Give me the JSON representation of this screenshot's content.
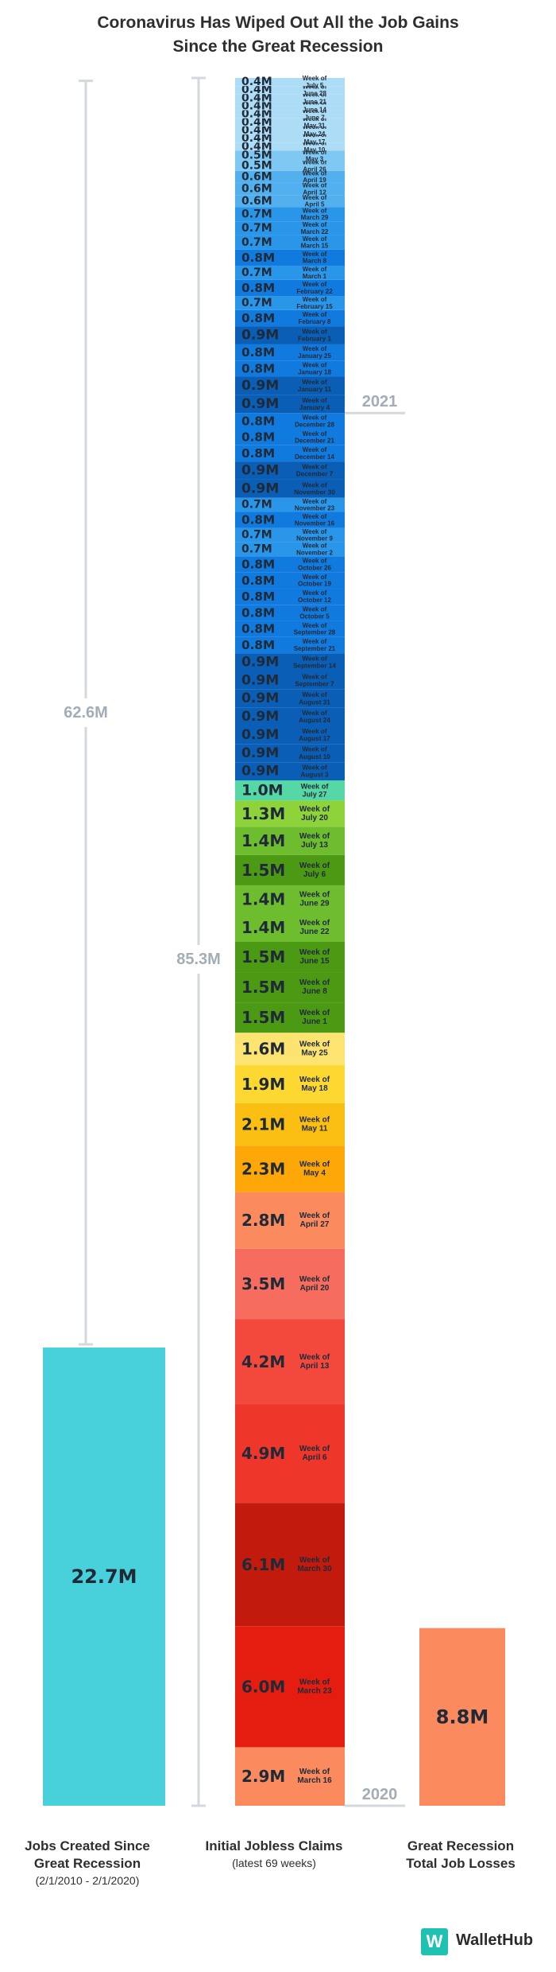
{
  "title_lines": [
    "Coronavirus Has Wiped Out All the Job Gains",
    "Since the Great Recession"
  ],
  "chart_data": {
    "type": "bar",
    "title": "Coronavirus Has Wiped Out All the Job Gains Since the Great Recession",
    "columns": [
      {
        "key": "jobs",
        "label_lines": [
          "Jobs Created Since",
          "Great Recession"
        ],
        "sublabel": "(2/1/2010 - 2/1/2020)",
        "value_label": "22.7M",
        "value": 22.7,
        "color": "#48d1da",
        "bracket_label": "62.6M",
        "bracket_value": 62.6
      },
      {
        "key": "claims",
        "label_lines": [
          "Initial Jobless Claims"
        ],
        "sublabel": "(latest 69 weeks)",
        "total_label": "85.3M",
        "total_value": 85.3
      },
      {
        "key": "recession",
        "label_lines": [
          "Great Recession",
          "Total Job Losses"
        ],
        "sublabel": "",
        "value_label": "8.8M",
        "value": 8.8,
        "color": "#fb8a5f"
      }
    ],
    "year_labels": [
      "2021",
      "2020"
    ],
    "weeks": [
      {
        "label": "0.4M",
        "date": "July 5",
        "value": 0.4,
        "color": "#addcf6"
      },
      {
        "label": "0.4M",
        "date": "June 28",
        "value": 0.4,
        "color": "#addcf6"
      },
      {
        "label": "0.4M",
        "date": "June 21",
        "value": 0.4,
        "color": "#addcf6"
      },
      {
        "label": "0.4M",
        "date": "June 14",
        "value": 0.4,
        "color": "#addcf6"
      },
      {
        "label": "0.4M",
        "date": "June 7",
        "value": 0.4,
        "color": "#addcf6"
      },
      {
        "label": "0.4M",
        "date": "May 31",
        "value": 0.4,
        "color": "#addcf6"
      },
      {
        "label": "0.4M",
        "date": "May 24",
        "value": 0.4,
        "color": "#addcf6"
      },
      {
        "label": "0.4M",
        "date": "May 17",
        "value": 0.4,
        "color": "#addcf6"
      },
      {
        "label": "0.4M",
        "date": "May 10",
        "value": 0.4,
        "color": "#addcf6"
      },
      {
        "label": "0.5M",
        "date": "May 3",
        "value": 0.5,
        "color": "#7fc8f3"
      },
      {
        "label": "0.5M",
        "date": "April 26",
        "value": 0.5,
        "color": "#7fc8f3"
      },
      {
        "label": "0.6M",
        "date": "April 19",
        "value": 0.6,
        "color": "#53b0ee"
      },
      {
        "label": "0.6M",
        "date": "April 12",
        "value": 0.6,
        "color": "#53b0ee"
      },
      {
        "label": "0.6M",
        "date": "April 5",
        "value": 0.6,
        "color": "#53b0ee"
      },
      {
        "label": "0.7M",
        "date": "March 29",
        "value": 0.7,
        "color": "#2a96ea"
      },
      {
        "label": "0.7M",
        "date": "March 22",
        "value": 0.7,
        "color": "#2a96ea"
      },
      {
        "label": "0.7M",
        "date": "March 15",
        "value": 0.7,
        "color": "#2a96ea"
      },
      {
        "label": "0.8M",
        "date": "March 8",
        "value": 0.8,
        "color": "#117ade"
      },
      {
        "label": "0.7M",
        "date": "March 1",
        "value": 0.7,
        "color": "#2a96ea"
      },
      {
        "label": "0.8M",
        "date": "February 22",
        "value": 0.8,
        "color": "#117ade"
      },
      {
        "label": "0.7M",
        "date": "February 15",
        "value": 0.7,
        "color": "#2a96ea"
      },
      {
        "label": "0.8M",
        "date": "February 8",
        "value": 0.8,
        "color": "#117ade"
      },
      {
        "label": "0.9M",
        "date": "February 1",
        "value": 0.9,
        "color": "#0a5eb6"
      },
      {
        "label": "0.8M",
        "date": "January 25",
        "value": 0.8,
        "color": "#117ade"
      },
      {
        "label": "0.8M",
        "date": "January 18",
        "value": 0.8,
        "color": "#117ade"
      },
      {
        "label": "0.9M",
        "date": "January 11",
        "value": 0.9,
        "color": "#0a5eb6"
      },
      {
        "label": "0.9M",
        "date": "January 4",
        "value": 0.9,
        "color": "#0a5eb6"
      },
      {
        "label": "0.8M",
        "date": "December 28",
        "value": 0.8,
        "color": "#117ade"
      },
      {
        "label": "0.8M",
        "date": "December 21",
        "value": 0.8,
        "color": "#117ade"
      },
      {
        "label": "0.8M",
        "date": "December 14",
        "value": 0.8,
        "color": "#117ade"
      },
      {
        "label": "0.9M",
        "date": "December 7",
        "value": 0.9,
        "color": "#0a5eb6"
      },
      {
        "label": "0.9M",
        "date": "November 30",
        "value": 0.9,
        "color": "#0a5eb6"
      },
      {
        "label": "0.7M",
        "date": "November 23",
        "value": 0.7,
        "color": "#2a96ea"
      },
      {
        "label": "0.8M",
        "date": "November 16",
        "value": 0.8,
        "color": "#117ade"
      },
      {
        "label": "0.7M",
        "date": "November 9",
        "value": 0.7,
        "color": "#2a96ea"
      },
      {
        "label": "0.7M",
        "date": "November 2",
        "value": 0.7,
        "color": "#2a96ea"
      },
      {
        "label": "0.8M",
        "date": "October 26",
        "value": 0.8,
        "color": "#117ade"
      },
      {
        "label": "0.8M",
        "date": "October 19",
        "value": 0.8,
        "color": "#117ade"
      },
      {
        "label": "0.8M",
        "date": "October 12",
        "value": 0.8,
        "color": "#117ade"
      },
      {
        "label": "0.8M",
        "date": "October 5",
        "value": 0.8,
        "color": "#117ade"
      },
      {
        "label": "0.8M",
        "date": "September 28",
        "value": 0.8,
        "color": "#117ade"
      },
      {
        "label": "0.8M",
        "date": "September 21",
        "value": 0.8,
        "color": "#117ade"
      },
      {
        "label": "0.9M",
        "date": "September 14",
        "value": 0.9,
        "color": "#0a5eb6"
      },
      {
        "label": "0.9M",
        "date": "September 7",
        "value": 0.9,
        "color": "#0a5eb6"
      },
      {
        "label": "0.9M",
        "date": "August 31",
        "value": 0.9,
        "color": "#0a5eb6"
      },
      {
        "label": "0.9M",
        "date": "August 24",
        "value": 0.9,
        "color": "#0a5eb6"
      },
      {
        "label": "0.9M",
        "date": "August 17",
        "value": 0.9,
        "color": "#0a5eb6"
      },
      {
        "label": "0.9M",
        "date": "August 10",
        "value": 0.9,
        "color": "#0a5eb6"
      },
      {
        "label": "0.9M",
        "date": "August 3",
        "value": 0.9,
        "color": "#0a5eb6"
      },
      {
        "label": "1.0M",
        "date": "July 27",
        "value": 1.0,
        "color": "#56d8a6"
      },
      {
        "label": "1.3M",
        "date": "July 20",
        "value": 1.3,
        "color": "#8dd339"
      },
      {
        "label": "1.4M",
        "date": "July 13",
        "value": 1.4,
        "color": "#6dbd2f"
      },
      {
        "label": "1.5M",
        "date": "July 6",
        "value": 1.5,
        "color": "#4c9a14"
      },
      {
        "label": "1.4M",
        "date": "June 29",
        "value": 1.4,
        "color": "#6dbd2f"
      },
      {
        "label": "1.4M",
        "date": "June 22",
        "value": 1.4,
        "color": "#6dbd2f"
      },
      {
        "label": "1.5M",
        "date": "June 15",
        "value": 1.5,
        "color": "#4c9a14"
      },
      {
        "label": "1.5M",
        "date": "June 8",
        "value": 1.5,
        "color": "#4c9a14"
      },
      {
        "label": "1.5M",
        "date": "June 1",
        "value": 1.5,
        "color": "#4c9a14"
      },
      {
        "label": "1.6M",
        "date": "May 25",
        "value": 1.6,
        "color": "#fde36f"
      },
      {
        "label": "1.9M",
        "date": "May 18",
        "value": 1.9,
        "color": "#fdd830"
      },
      {
        "label": "2.1M",
        "date": "May 11",
        "value": 2.1,
        "color": "#fbbe12"
      },
      {
        "label": "2.3M",
        "date": "May 4",
        "value": 2.3,
        "color": "#fda708"
      },
      {
        "label": "2.8M",
        "date": "April 27",
        "value": 2.8,
        "color": "#fb8a5f"
      },
      {
        "label": "3.5M",
        "date": "April 20",
        "value": 3.5,
        "color": "#f66c5e"
      },
      {
        "label": "4.2M",
        "date": "April 13",
        "value": 4.2,
        "color": "#f3483c"
      },
      {
        "label": "4.9M",
        "date": "April 6",
        "value": 4.9,
        "color": "#ee362b"
      },
      {
        "label": "6.1M",
        "date": "March 30",
        "value": 6.1,
        "color": "#c21a0c"
      },
      {
        "label": "6.0M",
        "date": "March 23",
        "value": 6.0,
        "color": "#e51d11"
      },
      {
        "label": "2.9M",
        "date": "March 16",
        "value": 2.9,
        "color": "#fb8a5f"
      }
    ]
  },
  "week_prefix": "Week of",
  "logo": {
    "mark": "W",
    "text": "WalletHub",
    "color": "#1fc1b0"
  }
}
